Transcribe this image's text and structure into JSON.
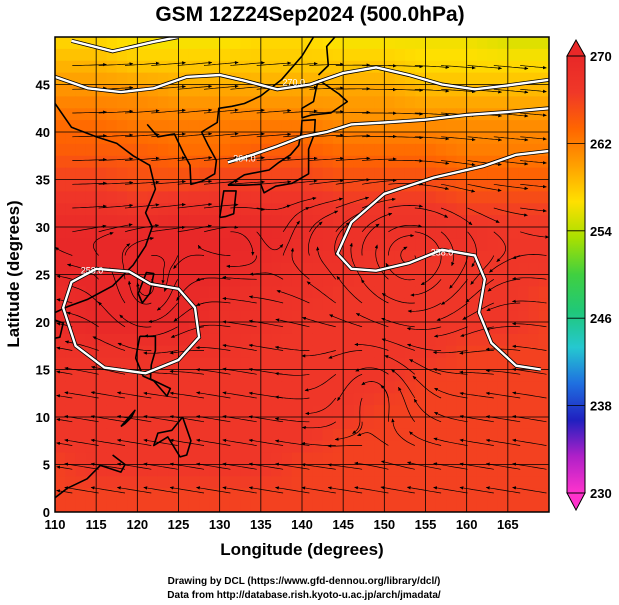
{
  "chart_data": {
    "type": "heatmap",
    "title": "GSM 12Z24Sep2024 (500.0hPa)",
    "xlabel": "Longitude (degrees)",
    "ylabel": "Latitude  (degrees)",
    "xlim": [
      110,
      170
    ],
    "ylim": [
      0,
      50
    ],
    "x_ticks": [
      "110",
      "115",
      "120",
      "125",
      "130",
      "135",
      "140",
      "145",
      "150",
      "155",
      "160",
      "165"
    ],
    "y_ticks": [
      "0",
      "5",
      "10",
      "15",
      "20",
      "25",
      "30",
      "35",
      "40",
      "45"
    ],
    "colorbar": {
      "min": 230,
      "max": 270,
      "ticks": [
        "270",
        "262",
        "254",
        "246",
        "238",
        "230"
      ],
      "colors": [
        "#ff33cc",
        "#b020c8",
        "#2020c0",
        "#1f6fe0",
        "#25c8d0",
        "#20c878",
        "#40d040",
        "#a8e000",
        "#ffe000",
        "#ffa000",
        "#ff6600",
        "#f03828",
        "#e82828"
      ]
    },
    "contours": [
      {
        "level": "270.0",
        "label": "270.0"
      },
      {
        "level": "264.0",
        "label": "264.0"
      },
      {
        "level": "258.0",
        "label": "258.0"
      }
    ],
    "field_samples": {
      "lat": [
        50,
        47,
        44,
        41,
        38,
        35,
        32,
        29,
        26,
        23,
        20,
        17,
        14,
        11,
        8,
        5,
        2
      ],
      "lon": [
        110,
        115,
        120,
        125,
        130,
        135,
        140,
        145,
        150,
        155,
        160,
        165,
        170
      ],
      "values": [
        [
          257,
          257,
          256,
          256,
          256,
          257,
          257,
          256,
          256,
          256,
          256,
          255,
          255
        ],
        [
          259,
          259,
          258,
          258,
          258,
          258,
          258,
          258,
          258,
          257,
          257,
          257,
          257
        ],
        [
          261,
          261,
          261,
          260,
          260,
          260,
          260,
          260,
          260,
          259,
          259,
          259,
          259
        ],
        [
          263,
          263,
          262,
          262,
          262,
          262,
          262,
          261,
          261,
          261,
          261,
          261,
          261
        ],
        [
          264,
          264,
          264,
          263,
          263,
          264,
          264,
          263,
          263,
          263,
          262,
          262,
          262
        ],
        [
          266,
          266,
          265,
          265,
          266,
          266,
          266,
          265,
          265,
          265,
          264,
          264,
          264
        ],
        [
          268,
          268,
          267,
          268,
          268,
          268,
          268,
          267,
          267,
          267,
          266,
          266,
          266
        ],
        [
          270,
          270,
          270,
          271,
          270,
          270,
          269,
          268,
          268,
          268,
          268,
          267,
          267
        ],
        [
          270,
          271,
          272,
          271,
          270,
          269,
          268,
          268,
          267,
          267,
          267,
          267,
          267
        ],
        [
          269,
          270,
          271,
          270,
          269,
          268,
          268,
          267,
          267,
          267,
          267,
          267,
          266
        ],
        [
          269,
          270,
          270,
          270,
          268,
          268,
          267,
          267,
          267,
          267,
          267,
          267,
          266
        ],
        [
          268,
          268,
          268,
          268,
          268,
          267,
          267,
          267,
          267,
          267,
          266,
          266,
          266
        ],
        [
          267,
          267,
          267,
          267,
          267,
          267,
          267,
          267,
          267,
          266,
          266,
          266,
          266
        ],
        [
          267,
          267,
          267,
          267,
          267,
          267,
          267,
          267,
          266,
          266,
          266,
          266,
          266
        ],
        [
          267,
          267,
          267,
          267,
          267,
          267,
          267,
          266,
          266,
          266,
          266,
          266,
          266
        ],
        [
          266,
          267,
          267,
          267,
          267,
          267,
          266,
          266,
          266,
          266,
          266,
          266,
          266
        ],
        [
          266,
          266,
          266,
          266,
          266,
          266,
          266,
          266,
          266,
          266,
          266,
          266,
          266
        ]
      ]
    },
    "wind": "streamlines, predominantly westerly north of 30N",
    "grid": true
  },
  "credits": [
    "Drawing by DCL (https://www.gfd-dennou.org/library/dcl/)",
    "Data from http://database.rish.kyoto-u.ac.jp/arch/jmadata/"
  ]
}
